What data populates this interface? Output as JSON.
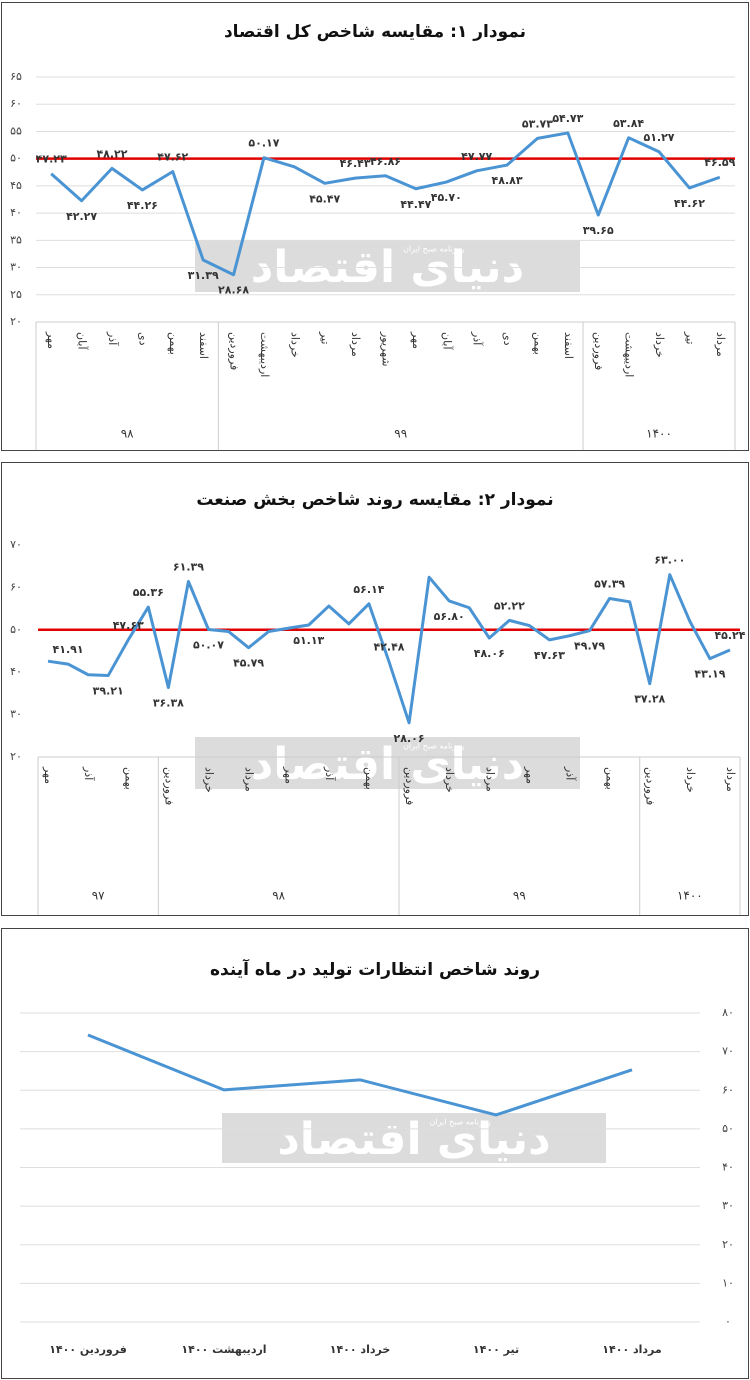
{
  "watermark": {
    "text": "دنیای اقتصاد",
    "subtext": "روزنامه صبح ایران"
  },
  "chart_data": [
    {
      "type": "line",
      "title": "نمودار ۱: مقایسه شاخص کل اقتصاد",
      "categories": [
        "مهر",
        "آبان",
        "آذر",
        "دی",
        "بهمن",
        "اسفند",
        "فروردین",
        "اردیبهشت",
        "خرداد",
        "تیر",
        "مرداد",
        "شهریور",
        "مهر",
        "آبان",
        "آذر",
        "دی",
        "بهمن",
        "اسفند",
        "فروردین",
        "اردیبهشت",
        "خرداد",
        "تیر",
        "مرداد"
      ],
      "groups": [
        {
          "label": "۹۸",
          "span": 6
        },
        {
          "label": "۹۹",
          "span": 12
        },
        {
          "label": "۱۴۰۰",
          "span": 5
        }
      ],
      "values": [
        47.23,
        42.27,
        48.22,
        44.26,
        47.62,
        31.39,
        28.68,
        50.17,
        48.5,
        45.47,
        46.43,
        46.86,
        44.47,
        45.7,
        47.77,
        48.83,
        53.73,
        54.73,
        39.65,
        53.84,
        51.27,
        44.62,
        46.59
      ],
      "value_labels": [
        "۴۷.۲۳",
        "۴۲.۲۷",
        "۴۸.۲۲",
        "۴۴.۲۶",
        "۴۷.۶۲",
        "۳۱.۳۹",
        "۲۸.۶۸",
        "۵۰.۱۷",
        null,
        "۴۵.۴۷",
        "۴۶.۴۳",
        "۴۶.۸۶",
        "۴۴.۴۷",
        "۴۵.۷۰",
        "۴۷.۷۷",
        "۴۸.۸۳",
        "۵۳.۷۳",
        "۵۴.۷۳",
        "۳۹.۶۵",
        "۵۳.۸۴",
        "۵۱.۲۷",
        "۴۴.۶۲",
        "۴۶.۵۹"
      ],
      "color": "#4a94d4",
      "reference_line": {
        "value": 50,
        "color": "#e00000"
      },
      "ylim": [
        20,
        65
      ],
      "yticks": [
        {
          "value": 20,
          "label": "۲۰"
        },
        {
          "value": 25,
          "label": "۲۵"
        },
        {
          "value": 30,
          "label": "۳۰"
        },
        {
          "value": 35,
          "label": "۳۵"
        },
        {
          "value": 40,
          "label": "۴۰"
        },
        {
          "value": 45,
          "label": "۴۵"
        },
        {
          "value": 50,
          "label": "۵۰"
        },
        {
          "value": 55,
          "label": "۵۵"
        },
        {
          "value": 60,
          "label": "۶۰"
        },
        {
          "value": 65,
          "label": "۶۵"
        }
      ],
      "grid": true,
      "y_axis_side": "left"
    },
    {
      "type": "line",
      "title": "نمودار ۲: مقایسه روند شاخص بخش صنعت",
      "categories": [
        "مهر",
        null,
        "آذر",
        null,
        "بهمن",
        null,
        "فروردین",
        null,
        "خرداد",
        null,
        "مرداد",
        null,
        "مهر",
        null,
        "آذر",
        null,
        "بهمن",
        null,
        "فروردین",
        null,
        "خرداد",
        null,
        "مرداد",
        null,
        "مهر",
        null,
        "آذر",
        null,
        "بهمن",
        null,
        "فروردین",
        null,
        "خرداد",
        null,
        "مرداد"
      ],
      "groups": [
        {
          "label": "۹۷",
          "span": 6
        },
        {
          "label": "۹۸",
          "span": 12
        },
        {
          "label": "۹۹",
          "span": 12
        },
        {
          "label": "۱۴۰۰",
          "span": 5
        }
      ],
      "values": [
        42.6,
        41.91,
        39.4,
        39.21,
        47.63,
        55.36,
        36.38,
        61.39,
        50.07,
        49.6,
        45.79,
        49.6,
        50.4,
        51.13,
        55.6,
        51.4,
        56.14,
        42.48,
        28.06,
        62.4,
        56.8,
        55.2,
        48.06,
        52.22,
        51.0,
        47.63,
        48.6,
        49.79,
        57.39,
        56.6,
        37.28,
        63.0,
        52.0,
        43.19,
        45.24
      ],
      "value_labels": [
        null,
        "۴۱.۹۱",
        null,
        "۳۹.۲۱",
        "۴۷.۶۳",
        "۵۵.۳۶",
        "۳۶.۳۸",
        "۶۱.۳۹",
        "۵۰.۰۷",
        null,
        "۴۵.۷۹",
        null,
        null,
        "۵۱.۱۳",
        null,
        null,
        "۵۶.۱۴",
        "۴۲.۴۸",
        "۲۸.۰۶",
        null,
        "۵۶.۸۰",
        null,
        "۴۸.۰۶",
        "۵۲.۲۲",
        null,
        "۴۷.۶۳",
        null,
        "۴۹.۷۹",
        "۵۷.۳۹",
        null,
        "۳۷.۲۸",
        "۶۳.۰۰",
        null,
        "۴۳.۱۹",
        "۴۵.۲۴"
      ],
      "color": "#4a94d4",
      "reference_line": {
        "value": 50,
        "color": "#e00000"
      },
      "ylim": [
        20,
        70
      ],
      "yticks": [
        {
          "value": 20,
          "label": "۲۰"
        },
        {
          "value": 30,
          "label": "۳۰"
        },
        {
          "value": 40,
          "label": "۴۰"
        },
        {
          "value": 50,
          "label": "۵۰"
        },
        {
          "value": 60,
          "label": "۶۰"
        },
        {
          "value": 70,
          "label": "۷۰"
        }
      ],
      "grid": false,
      "y_axis_side": "left"
    },
    {
      "type": "line",
      "title": "روند شاخص انتظارات تولید در ماه آینده",
      "categories": [
        "فروردین ۱۴۰۰",
        "اردیبهشت ۱۴۰۰",
        "خرداد ۱۴۰۰",
        "تیر ۱۴۰۰",
        "مرداد ۱۴۰۰"
      ],
      "values": [
        74.3,
        60.1,
        62.7,
        53.6,
        65.3
      ],
      "color": "#4a94d4",
      "ylim": [
        0,
        80
      ],
      "yticks": [
        {
          "value": 0,
          "label": "۰"
        },
        {
          "value": 10,
          "label": "۱۰"
        },
        {
          "value": 20,
          "label": "۲۰"
        },
        {
          "value": 30,
          "label": "۳۰"
        },
        {
          "value": 40,
          "label": "۴۰"
        },
        {
          "value": 50,
          "label": "۵۰"
        },
        {
          "value": 60,
          "label": "۶۰"
        },
        {
          "value": 70,
          "label": "۷۰"
        },
        {
          "value": 80,
          "label": "۸۰"
        }
      ],
      "grid": true,
      "y_axis_side": "right"
    }
  ]
}
